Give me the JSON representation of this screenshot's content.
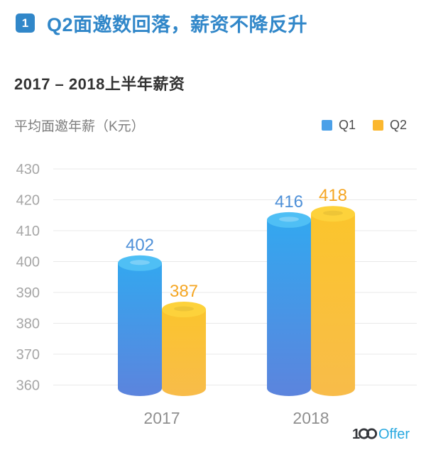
{
  "header": {
    "badge": "1",
    "title": "Q2面邀数回落，薪资不降反升"
  },
  "chart_data": {
    "type": "bar",
    "bar_style": "cylinder",
    "title": "2017 – 2018上半年薪资",
    "y_axis_title": "平均面邀年薪（K元）",
    "categories": [
      "2017",
      "2018"
    ],
    "series": [
      {
        "name": "Q1",
        "values": [
          402,
          416
        ],
        "colors": {
          "body_top": "#31A9F0",
          "body_bottom": "#5C84DD",
          "top_face": "#4FBFF5",
          "highlight": "rgba(255,255,255,0.25)",
          "value_label": "#4E90D8",
          "legend": "#4BA0E8"
        }
      },
      {
        "name": "Q2",
        "values": [
          387,
          418
        ],
        "colors": {
          "body_top": "#FBC52B",
          "body_bottom": "#F8BC4A",
          "top_face": "#FDD23B",
          "highlight": "rgba(0,0,0,0.06)",
          "value_label": "#F5A623",
          "legend": "#FBB72E"
        }
      }
    ],
    "ylim": [
      360,
      430
    ],
    "y_ticks": [
      430,
      420,
      410,
      400,
      390,
      380,
      370,
      360
    ],
    "grid": true,
    "legend_position": "top-right"
  },
  "footer": {
    "logo_text": "100Offer"
  },
  "theme": {
    "background": "#FFFFFF",
    "accent_blue": "#3187C9",
    "text_dark": "#333333",
    "text_gray": "#7E7E7E",
    "legend_text": "#4A4A4A",
    "axis_gray": "#A6A6A6",
    "xlabel_gray": "#8F8F8F",
    "gridline": "#E9E9E9",
    "logo_dark": "#35373C",
    "logo_blue": "#29A9E0"
  }
}
